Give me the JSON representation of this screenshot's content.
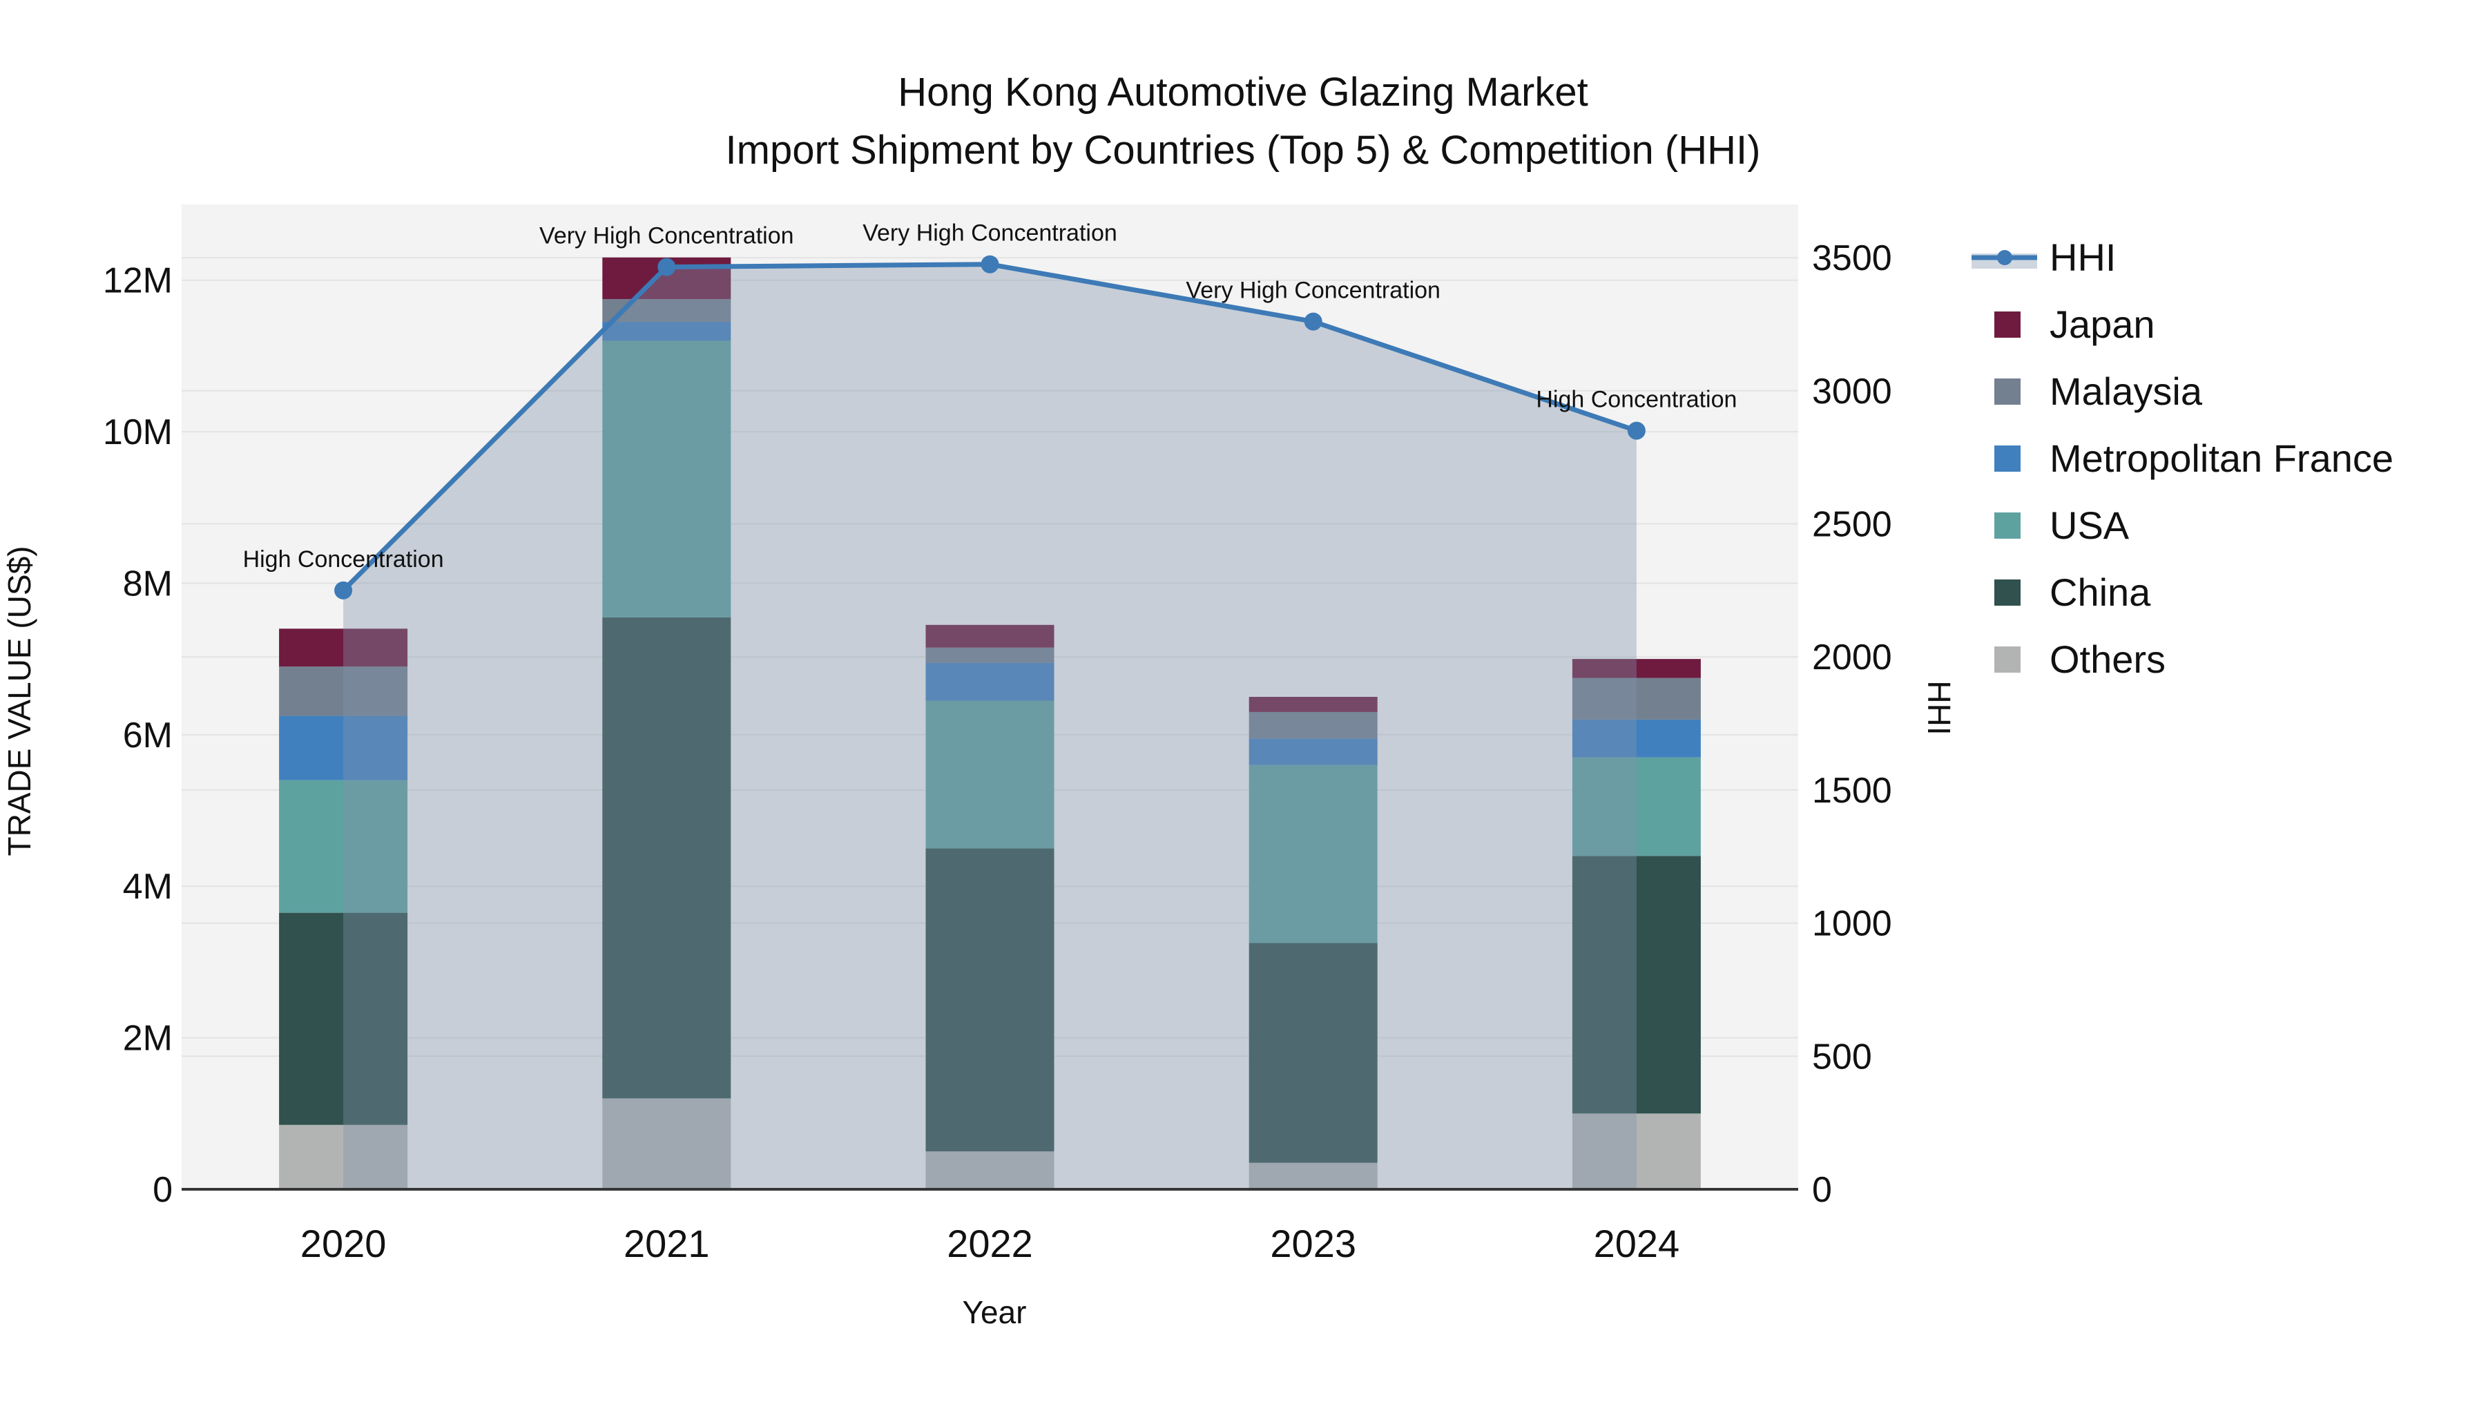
{
  "title": {
    "line1": "Hong Kong Automotive Glazing Market",
    "line2": "Import Shipment by Countries (Top 5) & Competition (HHI)"
  },
  "chart_data": {
    "type": "bar+line",
    "x_categories": [
      "2020",
      "2021",
      "2022",
      "2023",
      "2024"
    ],
    "bar_unit": "million US$",
    "bar_series": [
      {
        "name": "Others",
        "color": "#B2B4B3",
        "values": [
          0.85,
          1.2,
          0.5,
          0.35,
          1.0
        ]
      },
      {
        "name": "China",
        "color": "#30514D",
        "values": [
          2.8,
          6.35,
          4.0,
          2.9,
          3.4
        ]
      },
      {
        "name": "USA",
        "color": "#5EA2A0",
        "values": [
          1.75,
          3.65,
          1.95,
          2.35,
          1.3
        ]
      },
      {
        "name": "Metropolitan France",
        "color": "#4180BE",
        "values": [
          0.85,
          0.25,
          0.5,
          0.35,
          0.5
        ]
      },
      {
        "name": "Malaysia",
        "color": "#73808F",
        "values": [
          0.65,
          0.3,
          0.2,
          0.35,
          0.55
        ]
      },
      {
        "name": "Japan",
        "color": "#6E1B3F",
        "values": [
          0.5,
          0.55,
          0.3,
          0.2,
          0.25
        ]
      }
    ],
    "line_series": {
      "name": "HHI",
      "color": "#3D7AB6",
      "area_fill": "rgba(130,148,170,0.38)",
      "values": [
        2250,
        3465,
        3475,
        3260,
        2850
      ]
    },
    "annotations": [
      {
        "x": "2020",
        "text": "High Concentration"
      },
      {
        "x": "2021",
        "text": "Very High Concentration"
      },
      {
        "x": "2022",
        "text": "Very High Concentration"
      },
      {
        "x": "2023",
        "text": "Very High Concentration"
      },
      {
        "x": "2024",
        "text": "High Concentration"
      }
    ],
    "y_left": {
      "title": "TRADE VALUE (US$)",
      "tick_labels": [
        "0",
        "2M",
        "4M",
        "6M",
        "8M",
        "10M",
        "12M"
      ],
      "tick_values": [
        0,
        2,
        4,
        6,
        8,
        10,
        12
      ],
      "range": [
        0,
        13
      ]
    },
    "y_right": {
      "title": "HHI",
      "tick_labels": [
        "0",
        "500",
        "1000",
        "1500",
        "2000",
        "2500",
        "3000",
        "3500"
      ],
      "tick_values": [
        0,
        500,
        1000,
        1500,
        2000,
        2500,
        3000,
        3500
      ],
      "range": [
        0,
        3700
      ]
    },
    "x_axis": {
      "title": "Year"
    },
    "legend": [
      "HHI",
      "Japan",
      "Malaysia",
      "Metropolitan France",
      "USA",
      "China",
      "Others"
    ],
    "grid": true,
    "legend_position": "right",
    "plot_bg": "#f3f3f3",
    "gridline_color": "#e3e3e3",
    "axisline_color": "#363636"
  }
}
